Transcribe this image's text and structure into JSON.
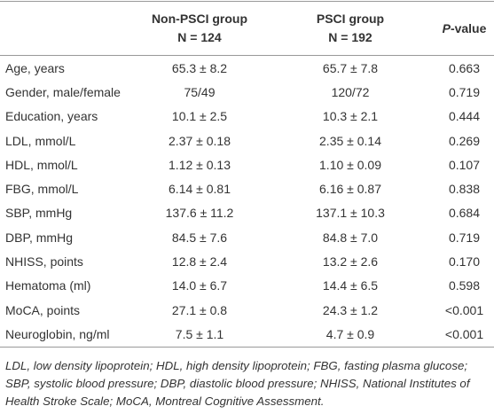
{
  "table": {
    "columns": [
      {
        "name": "Non-PSCI group",
        "n": "N = 124"
      },
      {
        "name": "PSCI group",
        "n": "N = 192"
      },
      {
        "p_italic": "P",
        "rest": "-value"
      }
    ],
    "rows": [
      [
        "Age, years",
        "65.3 ± 8.2",
        "65.7 ± 7.8",
        "0.663"
      ],
      [
        "Gender, male/female",
        "75/49",
        "120/72",
        "0.719"
      ],
      [
        "Education, years",
        "10.1 ± 2.5",
        "10.3 ± 2.1",
        "0.444"
      ],
      [
        "LDL, mmol/L",
        "2.37 ± 0.18",
        "2.35 ± 0.14",
        "0.269"
      ],
      [
        "HDL, mmol/L",
        "1.12 ± 0.13",
        "1.10 ± 0.09",
        "0.107"
      ],
      [
        "FBG, mmol/L",
        "6.14 ± 0.81",
        "6.16 ± 0.87",
        "0.838"
      ],
      [
        "SBP, mmHg",
        "137.6 ± 11.2",
        "137.1 ± 10.3",
        "0.684"
      ],
      [
        "DBP, mmHg",
        "84.5 ± 7.6",
        "84.8 ± 7.0",
        "0.719"
      ],
      [
        "NHISS, points",
        "12.8 ± 2.4",
        "13.2 ± 2.6",
        "0.170"
      ],
      [
        "Hematoma (ml)",
        "14.0 ± 6.7",
        "14.4 ± 6.5",
        "0.598"
      ],
      [
        "MoCA, points",
        "27.1 ± 0.8",
        "24.3 ± 1.2",
        "<0.001"
      ],
      [
        "Neuroglobin, ng/ml",
        "7.5 ± 1.1",
        "4.7 ± 0.9",
        "<0.001"
      ]
    ],
    "footnote": "LDL, low density lipoprotein; HDL, high density lipoprotein; FBG, fasting plasma glucose; SBP, systolic blood pressure; DBP, diastolic blood pressure; NHISS, National Institutes of Health Stroke Scale; MoCA, Montreal Cognitive Assessment."
  }
}
